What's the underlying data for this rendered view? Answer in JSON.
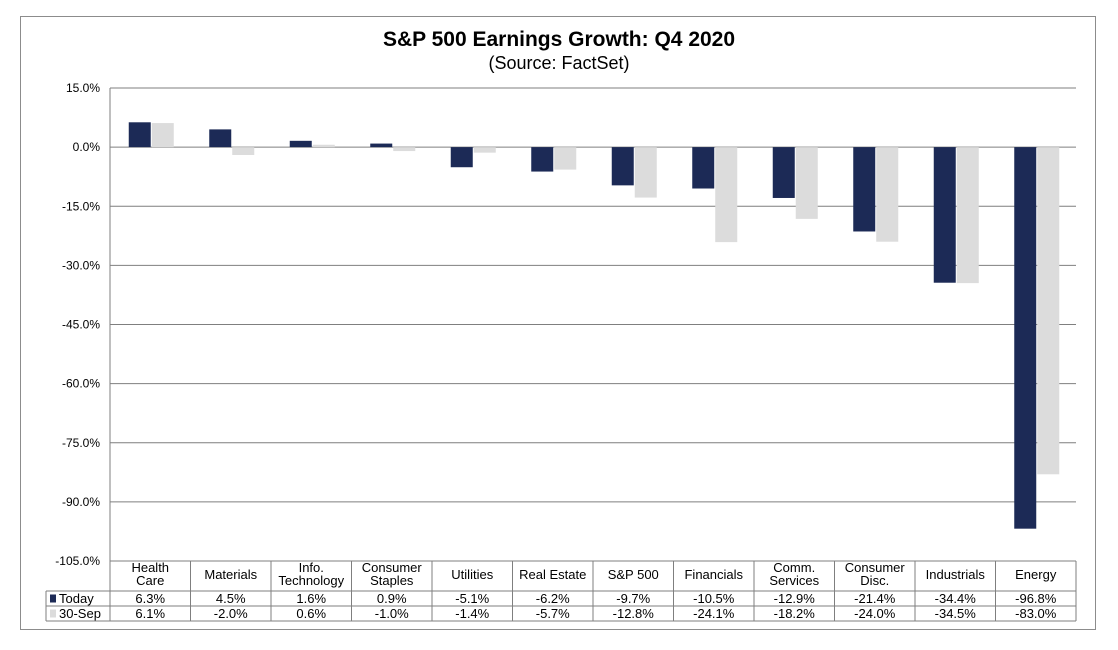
{
  "chart_data": {
    "type": "bar",
    "title": "S&P 500 Earnings Growth:  Q4 2020",
    "subtitle": "(Source: FactSet)",
    "categories": [
      [
        "Health",
        "Care"
      ],
      [
        "Materials"
      ],
      [
        "Info.",
        "Technology"
      ],
      [
        "Consumer",
        "Staples"
      ],
      [
        "Utilities"
      ],
      [
        "Real Estate"
      ],
      [
        "S&P 500"
      ],
      [
        "Financials"
      ],
      [
        "Comm.",
        "Services"
      ],
      [
        "Consumer",
        "Disc."
      ],
      [
        "Industrials"
      ],
      [
        "Energy"
      ]
    ],
    "series": [
      {
        "name": "Today",
        "color": "#1c2a56",
        "values": [
          6.3,
          4.5,
          1.6,
          0.9,
          -5.1,
          -6.2,
          -9.7,
          -10.5,
          -12.9,
          -21.4,
          -34.4,
          -96.8
        ],
        "labels": [
          "6.3%",
          "4.5%",
          "1.6%",
          "0.9%",
          "-5.1%",
          "-6.2%",
          "-9.7%",
          "-10.5%",
          "-12.9%",
          "-21.4%",
          "-34.4%",
          "-96.8%"
        ]
      },
      {
        "name": "30-Sep",
        "color": "#dcdcdc",
        "values": [
          6.1,
          -2.0,
          0.6,
          -1.0,
          -1.4,
          -5.7,
          -12.8,
          -24.1,
          -18.2,
          -24.0,
          -34.5,
          -83.0
        ],
        "labels": [
          "6.1%",
          "-2.0%",
          "0.6%",
          "-1.0%",
          "-1.4%",
          "-5.7%",
          "-12.8%",
          "-24.1%",
          "-18.2%",
          "-24.0%",
          "-34.5%",
          "-83.0%"
        ]
      }
    ],
    "ylim": [
      -105,
      15
    ],
    "yticks": [
      15,
      0,
      -15,
      -30,
      -45,
      -60,
      -75,
      -90,
      -105
    ],
    "ytick_labels": [
      "15.0%",
      "0.0%",
      "-15.0%",
      "-30.0%",
      "-45.0%",
      "-60.0%",
      "-75.0%",
      "-90.0%",
      "-105.0%"
    ],
    "grid": true,
    "legend": "data-table"
  }
}
